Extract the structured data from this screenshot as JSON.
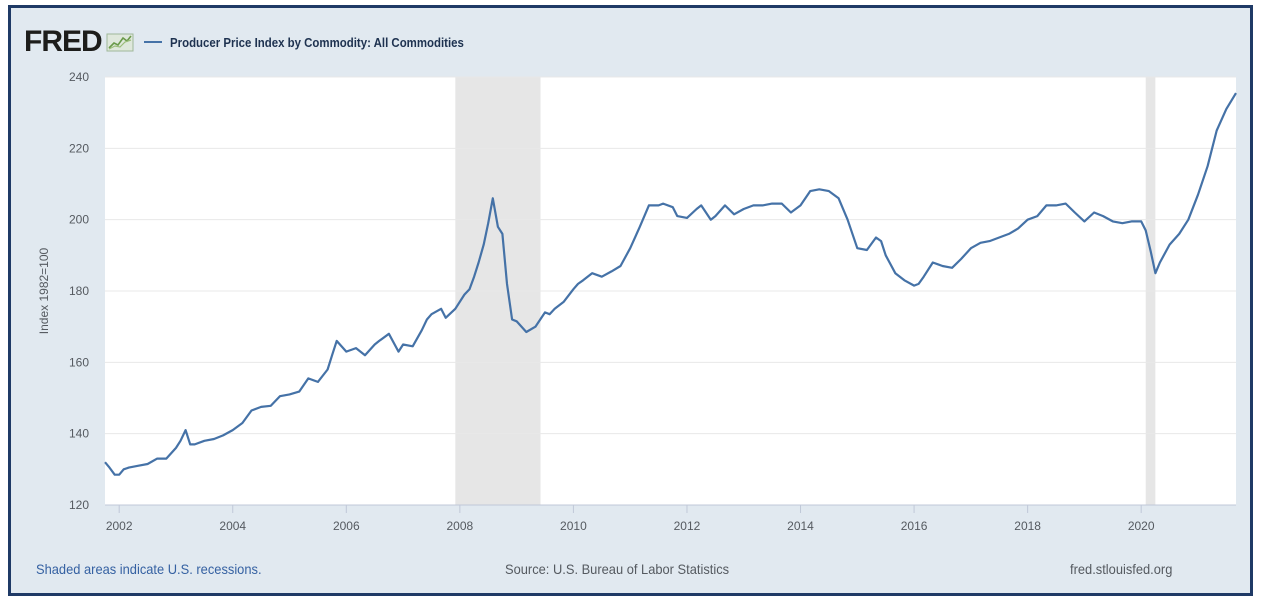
{
  "header": {
    "logo": "FRED",
    "logo_icon": "sparkline-icon",
    "series_title": "Producer Price Index by Commodity: All Commodities"
  },
  "footer": {
    "recession_note": "Shaded areas indicate U.S. recessions.",
    "source": "Source: U.S. Bureau of Labor Statistics",
    "site": "fred.stlouisfed.org"
  },
  "colors": {
    "frame_border": "#1f3a66",
    "frame_bg": "#e1e9f0",
    "plot_bg": "#ffffff",
    "line": "#4572a7",
    "recession": "#e6e6e6",
    "link": "#3561a2"
  },
  "chart_data": {
    "type": "line",
    "title": "Producer Price Index by Commodity: All Commodities",
    "xlabel": "",
    "ylabel": "Index 1982=100",
    "xlim": [
      2001.75,
      2021.67
    ],
    "ylim": [
      120,
      240
    ],
    "x_ticks": [
      2002,
      2004,
      2006,
      2008,
      2010,
      2012,
      2014,
      2016,
      2018,
      2020
    ],
    "y_ticks": [
      120,
      140,
      160,
      180,
      200,
      220,
      240
    ],
    "grid": true,
    "legend": "top-left",
    "recessions": [
      [
        2007.92,
        2009.42
      ],
      [
        2020.08,
        2020.25
      ]
    ],
    "series": [
      {
        "name": "Producer Price Index by Commodity: All Commodities",
        "x": [
          2001.75,
          2001.83,
          2001.92,
          2002.0,
          2002.08,
          2002.17,
          2002.33,
          2002.5,
          2002.67,
          2002.83,
          2003.0,
          2003.08,
          2003.17,
          2003.25,
          2003.33,
          2003.5,
          2003.67,
          2003.83,
          2004.0,
          2004.17,
          2004.33,
          2004.5,
          2004.67,
          2004.83,
          2005.0,
          2005.17,
          2005.33,
          2005.5,
          2005.67,
          2005.75,
          2005.83,
          2006.0,
          2006.17,
          2006.33,
          2006.5,
          2006.58,
          2006.75,
          2006.92,
          2007.0,
          2007.17,
          2007.33,
          2007.42,
          2007.5,
          2007.67,
          2007.75,
          2007.92,
          2008.08,
          2008.17,
          2008.25,
          2008.33,
          2008.42,
          2008.5,
          2008.58,
          2008.67,
          2008.75,
          2008.83,
          2008.92,
          2009.0,
          2009.17,
          2009.33,
          2009.5,
          2009.58,
          2009.67,
          2009.83,
          2010.0,
          2010.08,
          2010.17,
          2010.33,
          2010.5,
          2010.67,
          2010.83,
          2011.0,
          2011.17,
          2011.33,
          2011.5,
          2011.58,
          2011.75,
          2011.83,
          2012.0,
          2012.17,
          2012.25,
          2012.42,
          2012.5,
          2012.67,
          2012.83,
          2013.0,
          2013.17,
          2013.33,
          2013.5,
          2013.67,
          2013.83,
          2014.0,
          2014.17,
          2014.33,
          2014.5,
          2014.67,
          2014.83,
          2015.0,
          2015.17,
          2015.33,
          2015.42,
          2015.5,
          2015.67,
          2015.83,
          2016.0,
          2016.08,
          2016.17,
          2016.33,
          2016.42,
          2016.5,
          2016.67,
          2016.83,
          2017.0,
          2017.17,
          2017.33,
          2017.5,
          2017.67,
          2017.83,
          2018.0,
          2018.17,
          2018.33,
          2018.5,
          2018.67,
          2018.83,
          2019.0,
          2019.17,
          2019.33,
          2019.5,
          2019.67,
          2019.83,
          2020.0,
          2020.08,
          2020.17,
          2020.25,
          2020.33,
          2020.5,
          2020.67,
          2020.83,
          2021.0,
          2021.17,
          2021.33,
          2021.5,
          2021.67
        ],
        "values": [
          132.0,
          130.5,
          128.5,
          128.5,
          130.0,
          130.5,
          131.0,
          131.5,
          133.0,
          133.0,
          136.0,
          138.0,
          141.0,
          137.0,
          137.0,
          138.0,
          138.5,
          139.5,
          141.0,
          143.0,
          146.5,
          147.5,
          147.8,
          150.5,
          151.0,
          151.8,
          155.5,
          154.5,
          158.0,
          162.0,
          166.0,
          163.0,
          164.0,
          162.0,
          165.0,
          166.0,
          168.0,
          163.0,
          165.0,
          164.5,
          169.0,
          172.0,
          173.5,
          175.0,
          172.5,
          175.0,
          179.0,
          180.5,
          184.0,
          188.0,
          193.0,
          199.0,
          206.0,
          198.0,
          196.0,
          182.0,
          172.0,
          171.5,
          168.5,
          170.0,
          174.0,
          173.5,
          175.0,
          177.0,
          180.5,
          182.0,
          183.0,
          185.0,
          184.0,
          185.5,
          187.0,
          192.0,
          198.0,
          204.0,
          204.0,
          204.5,
          203.5,
          201.0,
          200.5,
          203.0,
          204.0,
          200.0,
          201.0,
          204.0,
          201.5,
          203.0,
          204.0,
          204.0,
          204.5,
          204.5,
          202.0,
          204.0,
          208.0,
          208.5,
          208.0,
          206.0,
          200.0,
          192.0,
          191.5,
          195.0,
          194.0,
          190.0,
          185.0,
          183.0,
          181.5,
          182.0,
          184.0,
          188.0,
          187.5,
          187.0,
          186.5,
          189.0,
          192.0,
          193.5,
          194.0,
          195.0,
          196.0,
          197.5,
          200.0,
          201.0,
          204.0,
          204.0,
          204.5,
          202.0,
          199.5,
          202.0,
          201.0,
          199.5,
          199.0,
          199.5,
          199.5,
          197.0,
          191.0,
          185.0,
          188.0,
          193.0,
          196.0,
          200.0,
          207.0,
          215.0,
          225.0,
          231.0,
          235.5
        ]
      }
    ]
  }
}
